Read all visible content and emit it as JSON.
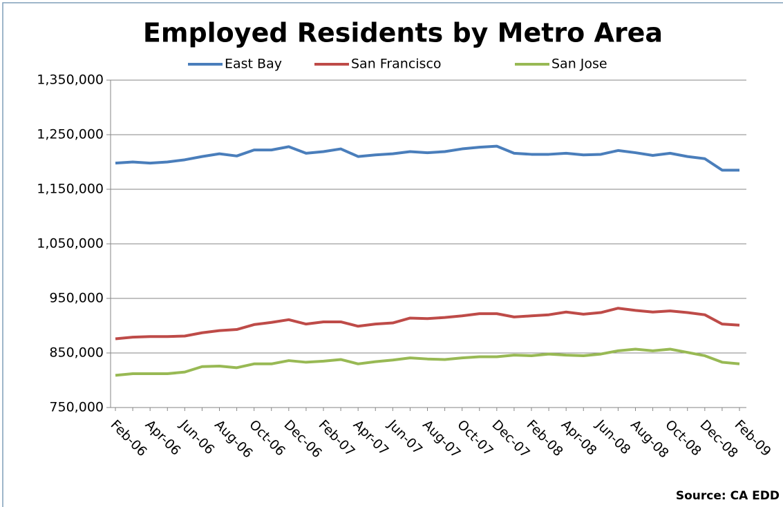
{
  "chart_data": {
    "type": "line",
    "title": "Employed Residents by Metro Area",
    "source": "Source: CA EDD",
    "categories": [
      "Feb-06",
      null,
      "Apr-06",
      null,
      "Jun-06",
      null,
      "Aug-06",
      null,
      "Oct-06",
      null,
      "Dec-06",
      null,
      "Feb-07",
      null,
      "Apr-07",
      null,
      "Jun-07",
      null,
      "Aug-07",
      null,
      "Oct-07",
      null,
      "Dec-07",
      null,
      "Feb-08",
      null,
      "Apr-08",
      null,
      "Jun-08",
      null,
      "Aug-08",
      null,
      "Oct-08",
      null,
      "Dec-08",
      null,
      "Feb-09"
    ],
    "series": [
      {
        "name": "East Bay",
        "color": "#4a7ebb",
        "values": [
          1198000,
          1200000,
          1198000,
          1200000,
          1204000,
          1210000,
          1215000,
          1211000,
          1222000,
          1222000,
          1228000,
          1216000,
          1219000,
          1224000,
          1210000,
          1213000,
          1215000,
          1219000,
          1217000,
          1219000,
          1224000,
          1227000,
          1229000,
          1216000,
          1214000,
          1214000,
          1216000,
          1213000,
          1214000,
          1221000,
          1217000,
          1212000,
          1216000,
          1210000,
          1206000,
          1185000,
          1185000
        ]
      },
      {
        "name": "San Francisco",
        "color": "#be4b48",
        "values": [
          876000,
          879000,
          880000,
          880000,
          881000,
          887000,
          891000,
          893000,
          902000,
          906000,
          911000,
          903000,
          907000,
          907000,
          899000,
          903000,
          905000,
          914000,
          913000,
          915000,
          918000,
          922000,
          922000,
          916000,
          918000,
          920000,
          925000,
          921000,
          924000,
          932000,
          928000,
          925000,
          927000,
          924000,
          920000,
          903000,
          901000
        ]
      },
      {
        "name": "San Jose",
        "color": "#98b954",
        "values": [
          809000,
          812000,
          812000,
          812000,
          815000,
          825000,
          826000,
          823000,
          830000,
          830000,
          836000,
          833000,
          835000,
          838000,
          830000,
          834000,
          837000,
          841000,
          839000,
          838000,
          841000,
          843000,
          843000,
          846000,
          845000,
          848000,
          846000,
          845000,
          848000,
          854000,
          857000,
          854000,
          857000,
          851000,
          845000,
          833000,
          830000
        ]
      }
    ],
    "ylim": [
      750000,
      1350000
    ],
    "yticks": [
      {
        "value": 750000,
        "label": "750,000"
      },
      {
        "value": 850000,
        "label": "850,000"
      },
      {
        "value": 950000,
        "label": "950,000"
      },
      {
        "value": 1050000,
        "label": "1,050,000"
      },
      {
        "value": 1150000,
        "label": "1,150,000"
      },
      {
        "value": 1250000,
        "label": "1,250,000"
      },
      {
        "value": 1350000,
        "label": "1,350,000"
      }
    ],
    "grid": true,
    "legend": "top"
  }
}
